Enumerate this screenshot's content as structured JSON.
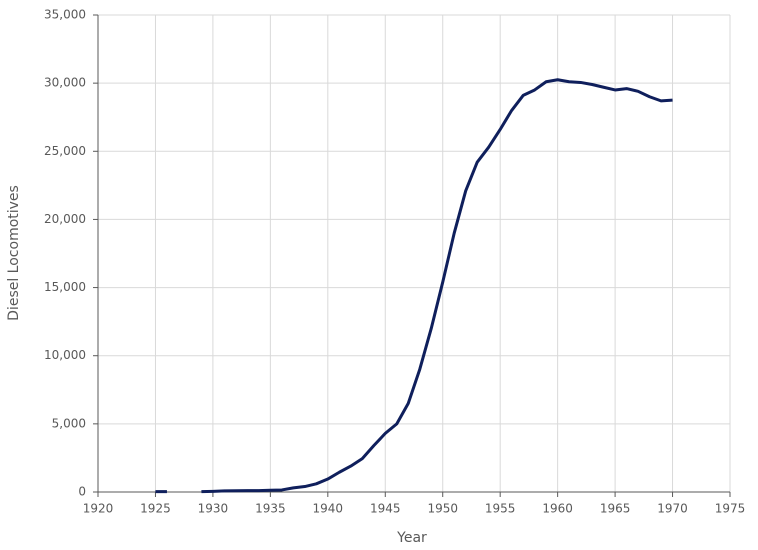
{
  "chart_data": {
    "type": "line",
    "x_label": "Year",
    "y_label": "Diesel Locomotives",
    "x": [
      1925,
      1926,
      1927,
      1928,
      1929,
      1930,
      1931,
      1932,
      1933,
      1934,
      1935,
      1936,
      1937,
      1938,
      1939,
      1940,
      1941,
      1942,
      1943,
      1944,
      1945,
      1946,
      1947,
      1948,
      1949,
      1950,
      1951,
      1952,
      1953,
      1954,
      1955,
      1956,
      1957,
      1958,
      1959,
      1960,
      1961,
      1962,
      1963,
      1964,
      1965,
      1966,
      1967,
      1968,
      1969,
      1970
    ],
    "values": [
      25,
      25,
      null,
      null,
      25,
      50,
      80,
      90,
      100,
      100,
      130,
      150,
      300,
      400,
      600,
      950,
      1450,
      1900,
      2450,
      3400,
      4300,
      5000,
      6500,
      9000,
      12000,
      15400,
      19000,
      22100,
      24200,
      25300,
      26600,
      28000,
      29100,
      29500,
      30100,
      30250,
      30100,
      30050,
      29900,
      29700,
      29500,
      29600,
      29400,
      29000,
      28700,
      28750
    ],
    "color": "#0f1f5c",
    "xlim": [
      1920,
      1975
    ],
    "xticks": [
      1920,
      1925,
      1930,
      1935,
      1940,
      1945,
      1950,
      1955,
      1960,
      1965,
      1970,
      1975
    ],
    "ylim": [
      0,
      35000
    ],
    "yticks": [
      0,
      {
        "value": 5000,
        "label": "5,000"
      },
      {
        "value": 10000,
        "label": "10,000"
      },
      {
        "value": 15000,
        "label": "15,000"
      },
      {
        "value": 20000,
        "label": "20,000"
      },
      {
        "value": 25000,
        "label": "25,000"
      },
      {
        "value": 30000,
        "label": "30,000"
      },
      {
        "value": 35000,
        "label": "35,000"
      }
    ],
    "grid": true
  }
}
